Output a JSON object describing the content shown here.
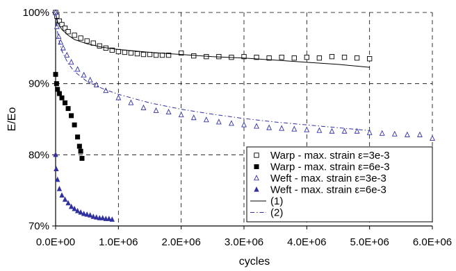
{
  "chart_data": {
    "type": "scatter",
    "title": "",
    "xlabel": "cycles",
    "ylabel": "E/Eo",
    "xlim": [
      0,
      6000000
    ],
    "ylim": [
      0.7,
      1.0
    ],
    "x_ticks": [
      0,
      1000000,
      2000000,
      3000000,
      4000000,
      5000000,
      6000000
    ],
    "x_tick_labels": [
      "0.0E+00",
      "1.0E+06",
      "2.0E+06",
      "3.0E+06",
      "4.0E+06",
      "5.0E+06",
      "6.0E+06"
    ],
    "y_ticks": [
      0.7,
      0.8,
      0.9,
      1.0
    ],
    "y_tick_labels": [
      "70%",
      "80%",
      "90%",
      "100%"
    ],
    "grid": true,
    "legend_position": "bottom-right",
    "series": [
      {
        "name": "Warp - max. strain  ε=3e-3",
        "marker": "open-square",
        "color": "#000000",
        "points": [
          [
            0,
            1.0
          ],
          [
            20000,
            0.995
          ],
          [
            60000,
            0.988
          ],
          [
            100000,
            0.983
          ],
          [
            150000,
            0.978
          ],
          [
            200000,
            0.973
          ],
          [
            300000,
            0.968
          ],
          [
            400000,
            0.964
          ],
          [
            500000,
            0.96
          ],
          [
            600000,
            0.957
          ],
          [
            700000,
            0.953
          ],
          [
            800000,
            0.95
          ],
          [
            900000,
            0.947
          ],
          [
            1000000,
            0.945
          ],
          [
            1100000,
            0.944
          ],
          [
            1200000,
            0.943
          ],
          [
            1300000,
            0.942
          ],
          [
            1400000,
            0.941
          ],
          [
            1500000,
            0.941
          ],
          [
            1600000,
            0.94
          ],
          [
            1700000,
            0.94
          ],
          [
            1800000,
            0.94
          ],
          [
            2000000,
            0.943
          ],
          [
            2200000,
            0.939
          ],
          [
            2400000,
            0.938
          ],
          [
            2600000,
            0.938
          ],
          [
            2800000,
            0.937
          ],
          [
            3000000,
            0.938
          ],
          [
            3200000,
            0.937
          ],
          [
            3400000,
            0.936
          ],
          [
            3600000,
            0.937
          ],
          [
            3800000,
            0.936
          ],
          [
            4000000,
            0.937
          ],
          [
            4200000,
            0.936
          ],
          [
            4400000,
            0.938
          ],
          [
            4600000,
            0.937
          ],
          [
            4800000,
            0.936
          ],
          [
            5000000,
            0.935
          ]
        ]
      },
      {
        "name": "Warp - max. strain  ε=6e-3",
        "marker": "filled-square",
        "color": "#000000",
        "points": [
          [
            0,
            0.913
          ],
          [
            15000,
            0.9
          ],
          [
            30000,
            0.892
          ],
          [
            60000,
            0.886
          ],
          [
            100000,
            0.88
          ],
          [
            150000,
            0.873
          ],
          [
            200000,
            0.865
          ],
          [
            250000,
            0.855
          ],
          [
            300000,
            0.842
          ],
          [
            350000,
            0.825
          ],
          [
            380000,
            0.812
          ],
          [
            400000,
            0.805
          ],
          [
            420000,
            0.795
          ]
        ]
      },
      {
        "name": "Weft - max. strain  ε=3e-3",
        "marker": "open-triangle",
        "color": "#3030a0",
        "points": [
          [
            0,
            1.0
          ],
          [
            20000,
            0.98
          ],
          [
            50000,
            0.966
          ],
          [
            80000,
            0.958
          ],
          [
            120000,
            0.95
          ],
          [
            180000,
            0.94
          ],
          [
            250000,
            0.93
          ],
          [
            350000,
            0.92
          ],
          [
            450000,
            0.912
          ],
          [
            550000,
            0.905
          ],
          [
            650000,
            0.898
          ],
          [
            800000,
            0.89
          ],
          [
            1000000,
            0.88
          ],
          [
            1200000,
            0.873
          ],
          [
            1400000,
            0.866
          ],
          [
            1600000,
            0.862
          ],
          [
            1800000,
            0.86
          ],
          [
            2000000,
            0.856
          ],
          [
            2200000,
            0.852
          ],
          [
            2400000,
            0.849
          ],
          [
            2600000,
            0.846
          ],
          [
            2800000,
            0.844
          ],
          [
            3000000,
            0.842
          ],
          [
            3200000,
            0.84
          ],
          [
            3400000,
            0.838
          ],
          [
            3600000,
            0.837
          ],
          [
            3800000,
            0.836
          ],
          [
            4000000,
            0.835
          ],
          [
            4200000,
            0.834
          ],
          [
            4400000,
            0.833
          ],
          [
            4600000,
            0.833
          ],
          [
            4800000,
            0.833
          ],
          [
            5000000,
            0.831
          ],
          [
            5200000,
            0.83
          ],
          [
            5400000,
            0.829
          ],
          [
            5600000,
            0.828
          ],
          [
            5800000,
            0.828
          ],
          [
            6000000,
            0.823
          ]
        ]
      },
      {
        "name": "Weft - max. strain  ε=6e-3",
        "marker": "filled-triangle",
        "color": "#3030a0",
        "points": [
          [
            0,
            0.8
          ],
          [
            10000,
            0.78
          ],
          [
            30000,
            0.765
          ],
          [
            60000,
            0.752
          ],
          [
            100000,
            0.743
          ],
          [
            150000,
            0.737
          ],
          [
            200000,
            0.732
          ],
          [
            250000,
            0.727
          ],
          [
            300000,
            0.724
          ],
          [
            350000,
            0.721
          ],
          [
            400000,
            0.719
          ],
          [
            450000,
            0.717
          ],
          [
            500000,
            0.716
          ],
          [
            550000,
            0.715
          ],
          [
            600000,
            0.713
          ],
          [
            650000,
            0.712
          ],
          [
            700000,
            0.711
          ],
          [
            750000,
            0.711
          ],
          [
            800000,
            0.71
          ],
          [
            850000,
            0.71
          ],
          [
            900000,
            0.709
          ]
        ]
      },
      {
        "name": "(1)",
        "line": "solid",
        "color": "#000000",
        "points": [
          [
            0,
            1.0
          ],
          [
            20000,
            0.99
          ],
          [
            50000,
            0.983
          ],
          [
            100000,
            0.976
          ],
          [
            200000,
            0.968
          ],
          [
            300000,
            0.962
          ],
          [
            500000,
            0.956
          ],
          [
            750000,
            0.951
          ],
          [
            1000000,
            0.948
          ],
          [
            1500000,
            0.944
          ],
          [
            2000000,
            0.941
          ],
          [
            2500000,
            0.938
          ],
          [
            3000000,
            0.936
          ],
          [
            3500000,
            0.933
          ],
          [
            4000000,
            0.93
          ],
          [
            4500000,
            0.927
          ],
          [
            5000000,
            0.923
          ]
        ]
      },
      {
        "name": "(2)",
        "line": "dash-dot",
        "color": "#3030a0",
        "points": [
          [
            0,
            1.0
          ],
          [
            20000,
            0.978
          ],
          [
            50000,
            0.962
          ],
          [
            100000,
            0.946
          ],
          [
            200000,
            0.928
          ],
          [
            300000,
            0.917
          ],
          [
            500000,
            0.903
          ],
          [
            750000,
            0.893
          ],
          [
            1000000,
            0.885
          ],
          [
            1500000,
            0.873
          ],
          [
            2000000,
            0.864
          ],
          [
            2500000,
            0.857
          ],
          [
            3000000,
            0.851
          ],
          [
            3500000,
            0.846
          ],
          [
            4000000,
            0.842
          ],
          [
            4500000,
            0.838
          ],
          [
            5000000,
            0.834
          ]
        ]
      }
    ]
  }
}
